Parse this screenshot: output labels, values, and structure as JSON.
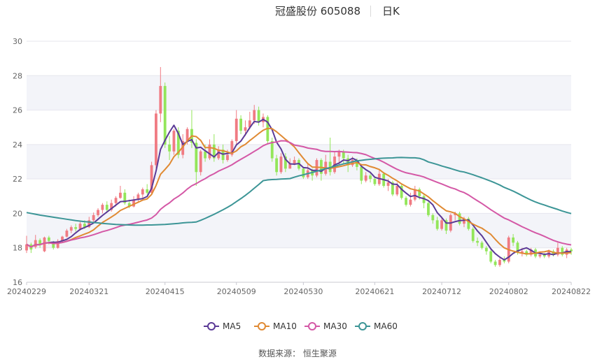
{
  "chart_data": {
    "type": "candlestick",
    "title": "冠盛股份 605088",
    "subtitle": "日K",
    "source": "数据来源： 恒生聚源",
    "ylim": [
      16,
      30
    ],
    "yticks": [
      16,
      18,
      20,
      22,
      24,
      26,
      28,
      30
    ],
    "xtick_labels": [
      "20240229",
      "20240321",
      "20240415",
      "20240509",
      "20240530",
      "20240621",
      "20240712",
      "20240802",
      "20240822"
    ],
    "xtick_index": [
      0,
      14,
      31,
      47,
      62,
      78,
      93,
      108,
      122
    ],
    "grid": true,
    "legend_position": "bottom",
    "colors": {
      "up": "#f07b83",
      "down": "#93e65a",
      "MA5": "#5b3a96",
      "MA10": "#e08a33",
      "MA30": "#d458a6",
      "MA60": "#3c9596"
    },
    "candles": [
      [
        17.85,
        18.2,
        18.7,
        17.7
      ],
      [
        18.2,
        17.9,
        18.3,
        17.7
      ],
      [
        18.05,
        18.45,
        18.75,
        17.95
      ],
      [
        18.45,
        18.2,
        18.55,
        18.0
      ],
      [
        17.8,
        18.6,
        18.65,
        17.75
      ],
      [
        18.6,
        18.4,
        18.7,
        18.2
      ],
      [
        18.3,
        18.0,
        18.4,
        17.9
      ],
      [
        18.0,
        18.4,
        18.5,
        17.95
      ],
      [
        18.4,
        18.65,
        18.7,
        18.3
      ],
      [
        18.65,
        19.0,
        19.1,
        18.6
      ],
      [
        19.0,
        19.2,
        19.3,
        18.85
      ],
      [
        19.2,
        19.1,
        19.4,
        18.95
      ],
      [
        19.1,
        19.4,
        19.5,
        19.0
      ],
      [
        19.4,
        19.2,
        19.6,
        19.1
      ],
      [
        19.2,
        19.6,
        19.8,
        19.15
      ],
      [
        19.6,
        19.9,
        20.05,
        19.5
      ],
      [
        19.9,
        20.2,
        20.3,
        19.8
      ],
      [
        20.2,
        20.5,
        20.6,
        20.0
      ],
      [
        20.5,
        20.2,
        20.7,
        20.1
      ],
      [
        20.2,
        20.6,
        20.8,
        20.1
      ],
      [
        20.6,
        20.9,
        21.0,
        20.4
      ],
      [
        20.9,
        21.2,
        21.6,
        20.85
      ],
      [
        21.2,
        20.6,
        21.4,
        20.5
      ],
      [
        20.6,
        20.4,
        20.8,
        20.3
      ],
      [
        20.4,
        20.8,
        21.0,
        20.35
      ],
      [
        20.8,
        21.1,
        21.2,
        20.7
      ],
      [
        21.1,
        21.4,
        21.5,
        20.9
      ],
      [
        21.4,
        21.2,
        21.7,
        21.1
      ],
      [
        21.2,
        22.8,
        23.0,
        21.1
      ],
      [
        22.8,
        25.8,
        26.0,
        22.6
      ],
      [
        25.8,
        27.4,
        28.5,
        25.3
      ],
      [
        27.4,
        24.0,
        27.6,
        23.8
      ],
      [
        24.0,
        23.6,
        24.5,
        23.1
      ],
      [
        23.6,
        24.8,
        24.9,
        23.4
      ],
      [
        24.8,
        23.4,
        25.0,
        23.2
      ],
      [
        23.4,
        24.2,
        24.6,
        23.2
      ],
      [
        24.2,
        24.9,
        25.0,
        24.0
      ],
      [
        24.9,
        24.1,
        26.0,
        23.8
      ],
      [
        24.1,
        22.4,
        24.3,
        21.6
      ],
      [
        22.4,
        23.6,
        23.7,
        22.2
      ],
      [
        23.6,
        23.2,
        24.0,
        23.0
      ],
      [
        23.2,
        24.0,
        24.3,
        23.1
      ],
      [
        24.0,
        23.2,
        24.6,
        23.0
      ],
      [
        23.2,
        23.7,
        23.9,
        23.1
      ],
      [
        23.7,
        23.1,
        24.0,
        22.9
      ],
      [
        23.1,
        23.4,
        23.7,
        23.0
      ],
      [
        23.4,
        24.2,
        24.3,
        23.3
      ],
      [
        24.2,
        25.5,
        26.0,
        24.0
      ],
      [
        25.5,
        24.8,
        25.7,
        24.6
      ],
      [
        24.8,
        25.0,
        25.4,
        24.5
      ],
      [
        25.0,
        25.4,
        25.9,
        24.9
      ],
      [
        25.4,
        26.0,
        26.3,
        25.2
      ],
      [
        26.0,
        25.3,
        26.2,
        25.1
      ],
      [
        25.3,
        25.6,
        25.8,
        25.0
      ],
      [
        25.6,
        24.2,
        25.7,
        24.0
      ],
      [
        24.2,
        23.2,
        24.4,
        23.0
      ],
      [
        23.2,
        22.4,
        23.4,
        22.2
      ],
      [
        22.4,
        23.3,
        23.5,
        22.3
      ],
      [
        23.3,
        22.6,
        23.5,
        22.4
      ],
      [
        22.6,
        22.9,
        23.2,
        22.6
      ],
      [
        22.9,
        23.1,
        23.3,
        22.8
      ],
      [
        23.1,
        22.6,
        23.2,
        22.5
      ],
      [
        22.6,
        22.1,
        22.7,
        22.0
      ],
      [
        22.1,
        22.5,
        22.9,
        22.0
      ],
      [
        22.5,
        22.2,
        22.6,
        21.9
      ],
      [
        22.2,
        23.1,
        23.2,
        22.1
      ],
      [
        23.1,
        22.3,
        23.2,
        21.9
      ],
      [
        22.3,
        23.0,
        23.4,
        22.2
      ],
      [
        23.0,
        22.4,
        24.4,
        22.2
      ],
      [
        22.4,
        23.3,
        23.6,
        22.3
      ],
      [
        23.3,
        23.6,
        23.7,
        22.8
      ],
      [
        23.6,
        23.2,
        23.7,
        22.9
      ],
      [
        23.2,
        22.8,
        23.4,
        22.4
      ],
      [
        22.8,
        23.1,
        23.3,
        22.7
      ],
      [
        23.1,
        22.7,
        23.2,
        22.5
      ],
      [
        22.7,
        21.9,
        22.8,
        21.7
      ],
      [
        21.9,
        22.2,
        22.4,
        21.8
      ],
      [
        22.2,
        22.0,
        22.3,
        21.8
      ],
      [
        22.0,
        21.7,
        22.1,
        21.6
      ],
      [
        21.7,
        22.3,
        22.5,
        21.6
      ],
      [
        22.3,
        21.6,
        22.4,
        21.5
      ],
      [
        21.6,
        21.8,
        22.0,
        21.3
      ],
      [
        21.8,
        21.1,
        21.9,
        21.0
      ],
      [
        21.1,
        21.6,
        21.8,
        21.0
      ],
      [
        21.6,
        20.9,
        21.7,
        20.8
      ],
      [
        20.9,
        20.5,
        21.0,
        20.4
      ],
      [
        20.5,
        20.8,
        21.2,
        20.4
      ],
      [
        20.8,
        21.4,
        21.6,
        20.7
      ],
      [
        21.4,
        21.0,
        21.5,
        20.8
      ],
      [
        21.0,
        20.6,
        21.1,
        20.3
      ],
      [
        20.6,
        19.9,
        20.7,
        19.8
      ],
      [
        19.9,
        19.6,
        20.0,
        19.4
      ],
      [
        19.6,
        19.1,
        19.8,
        19.0
      ],
      [
        19.1,
        19.6,
        19.8,
        19.0
      ],
      [
        19.6,
        19.0,
        19.7,
        18.8
      ],
      [
        19.0,
        19.9,
        20.0,
        18.9
      ],
      [
        19.9,
        20.0,
        20.1,
        19.6
      ],
      [
        20.0,
        19.4,
        20.1,
        19.3
      ],
      [
        19.4,
        19.7,
        19.8,
        19.2
      ],
      [
        19.7,
        19.1,
        19.8,
        19.0
      ],
      [
        19.1,
        18.4,
        19.2,
        18.3
      ],
      [
        18.4,
        18.3,
        18.6,
        18.1
      ],
      [
        18.3,
        18.0,
        18.4,
        17.9
      ],
      [
        18.0,
        17.8,
        18.1,
        17.6
      ],
      [
        17.8,
        17.2,
        17.9,
        17.1
      ],
      [
        17.2,
        17.0,
        17.3,
        16.9
      ],
      [
        17.0,
        17.3,
        17.4,
        16.9
      ],
      [
        17.3,
        17.2,
        17.5,
        17.1
      ],
      [
        17.2,
        18.6,
        18.7,
        17.1
      ],
      [
        18.6,
        18.3,
        18.8,
        18.1
      ],
      [
        18.3,
        17.7,
        18.4,
        17.6
      ],
      [
        17.7,
        17.8,
        18.0,
        17.5
      ],
      [
        17.8,
        17.6,
        17.9,
        17.5
      ],
      [
        17.6,
        17.9,
        18.0,
        17.5
      ],
      [
        17.9,
        17.5,
        18.0,
        17.4
      ],
      [
        17.5,
        17.6,
        17.8,
        17.4
      ],
      [
        17.6,
        17.5,
        17.7,
        17.4
      ],
      [
        17.5,
        17.8,
        17.9,
        17.4
      ],
      [
        17.8,
        17.6,
        17.9,
        17.5
      ],
      [
        17.6,
        18.0,
        18.3,
        17.5
      ],
      [
        18.0,
        17.6,
        18.1,
        17.5
      ],
      [
        17.6,
        17.9,
        18.0,
        17.4
      ],
      [
        17.9,
        17.8,
        18.0,
        17.6
      ]
    ],
    "ma60_prefix": [
      20.05,
      20.0,
      19.95,
      19.9,
      19.86,
      19.82,
      19.78,
      19.74,
      19.7,
      19.66,
      19.62,
      19.58,
      19.55,
      19.52,
      19.5,
      19.47,
      19.45,
      19.42,
      19.4,
      19.38,
      19.36,
      19.35,
      19.34,
      19.33,
      19.32,
      19.32,
      19.32,
      19.33,
      19.33,
      19.34,
      19.35,
      19.36,
      19.38,
      19.4,
      19.42,
      19.45,
      19.47,
      19.48,
      19.5
    ],
    "series": [
      {
        "name": "MA5",
        "window": 5
      },
      {
        "name": "MA10",
        "window": 10
      },
      {
        "name": "MA30",
        "window": 30
      },
      {
        "name": "MA60",
        "window": 60
      }
    ]
  }
}
